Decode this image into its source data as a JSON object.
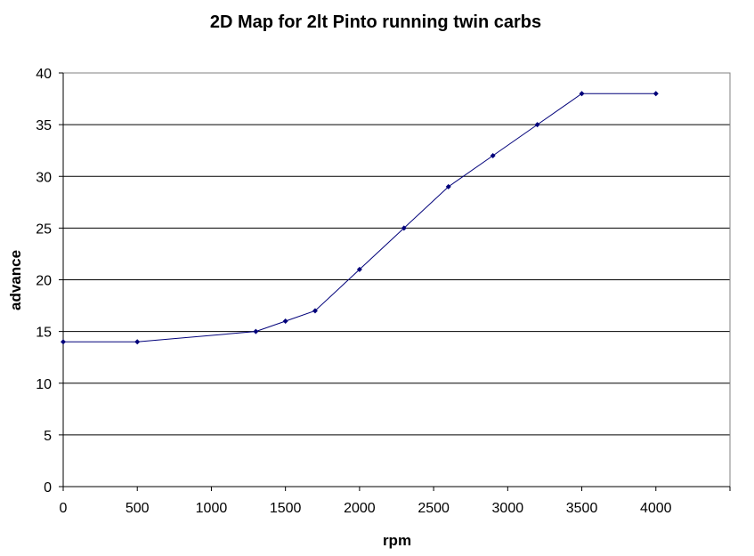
{
  "chart_data": {
    "type": "line",
    "title": "2D Map for 2lt Pinto running twin carbs",
    "xlabel": "rpm",
    "ylabel": "advance",
    "xlim": [
      0,
      4500
    ],
    "ylim": [
      0,
      40
    ],
    "x_ticks": [
      0,
      500,
      1000,
      1500,
      2000,
      2500,
      3000,
      3500,
      4000
    ],
    "y_ticks": [
      0,
      5,
      10,
      15,
      20,
      25,
      30,
      35,
      40
    ],
    "grid": "horizontal",
    "legend": "none",
    "series": [
      {
        "color": "#00007a",
        "points": [
          {
            "x": 0,
            "y": 14
          },
          {
            "x": 500,
            "y": 14
          },
          {
            "x": 1300,
            "y": 15
          },
          {
            "x": 1500,
            "y": 16
          },
          {
            "x": 1700,
            "y": 17
          },
          {
            "x": 2000,
            "y": 21
          },
          {
            "x": 2300,
            "y": 25
          },
          {
            "x": 2600,
            "y": 29
          },
          {
            "x": 2900,
            "y": 32
          },
          {
            "x": 3200,
            "y": 35
          },
          {
            "x": 3500,
            "y": 38
          },
          {
            "x": 4000,
            "y": 38
          }
        ]
      }
    ]
  }
}
